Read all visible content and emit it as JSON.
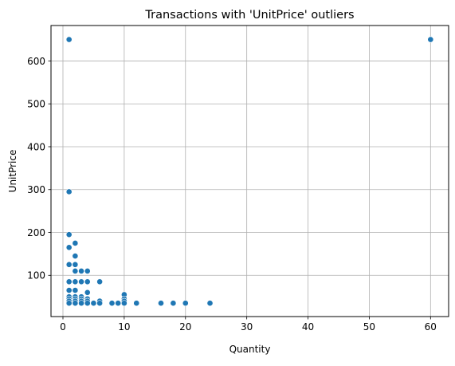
{
  "chart_data": {
    "type": "scatter",
    "title": "Transactions with 'UnitPrice' outliers",
    "xlabel": "Quantity",
    "ylabel": "UnitPrice",
    "xlim": [
      -1.95,
      62.95
    ],
    "ylim": [
      3.8,
      682.7
    ],
    "xticks": [
      0,
      10,
      20,
      30,
      40,
      50,
      60
    ],
    "yticks": [
      100,
      200,
      300,
      400,
      500,
      600
    ],
    "grid": true,
    "marker_color": "#1f77b4",
    "points": [
      {
        "x": 1,
        "y": 650
      },
      {
        "x": 60,
        "y": 650
      },
      {
        "x": 1,
        "y": 295
      },
      {
        "x": 1,
        "y": 195
      },
      {
        "x": 2,
        "y": 175
      },
      {
        "x": 1,
        "y": 165
      },
      {
        "x": 2,
        "y": 145
      },
      {
        "x": 1,
        "y": 125
      },
      {
        "x": 2,
        "y": 125
      },
      {
        "x": 2,
        "y": 110
      },
      {
        "x": 3,
        "y": 110
      },
      {
        "x": 4,
        "y": 110
      },
      {
        "x": 1,
        "y": 85
      },
      {
        "x": 2,
        "y": 85
      },
      {
        "x": 3,
        "y": 85
      },
      {
        "x": 4,
        "y": 85
      },
      {
        "x": 6,
        "y": 85
      },
      {
        "x": 1,
        "y": 65
      },
      {
        "x": 2,
        "y": 65
      },
      {
        "x": 4,
        "y": 60
      },
      {
        "x": 1,
        "y": 50
      },
      {
        "x": 2,
        "y": 50
      },
      {
        "x": 3,
        "y": 50
      },
      {
        "x": 10,
        "y": 55
      },
      {
        "x": 1,
        "y": 45
      },
      {
        "x": 2,
        "y": 45
      },
      {
        "x": 3,
        "y": 45
      },
      {
        "x": 4,
        "y": 45
      },
      {
        "x": 10,
        "y": 45
      },
      {
        "x": 1,
        "y": 40
      },
      {
        "x": 2,
        "y": 40
      },
      {
        "x": 3,
        "y": 40
      },
      {
        "x": 4,
        "y": 40
      },
      {
        "x": 6,
        "y": 40
      },
      {
        "x": 10,
        "y": 40
      },
      {
        "x": 1,
        "y": 35
      },
      {
        "x": 2,
        "y": 35
      },
      {
        "x": 3,
        "y": 35
      },
      {
        "x": 4,
        "y": 35
      },
      {
        "x": 5,
        "y": 35
      },
      {
        "x": 6,
        "y": 35
      },
      {
        "x": 8,
        "y": 35
      },
      {
        "x": 9,
        "y": 35
      },
      {
        "x": 10,
        "y": 35
      },
      {
        "x": 12,
        "y": 35
      },
      {
        "x": 16,
        "y": 35
      },
      {
        "x": 18,
        "y": 35
      },
      {
        "x": 20,
        "y": 35
      },
      {
        "x": 24,
        "y": 35
      }
    ]
  }
}
